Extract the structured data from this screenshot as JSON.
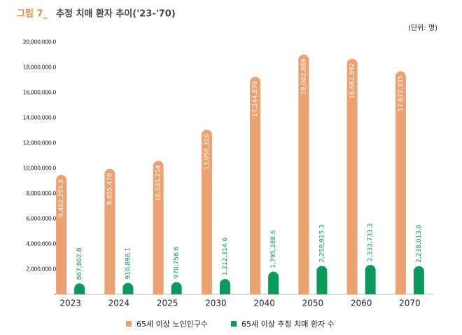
{
  "chart_data": {
    "type": "bar",
    "figure_label": "그림 7_",
    "title": "추정 치매 환자 추이('23-'70)",
    "unit_note": "(단위:  명)",
    "categories": [
      "2023",
      "2024",
      "2025",
      "2030",
      "2040",
      "2050",
      "2060",
      "2070"
    ],
    "series": [
      {
        "name": "65세 이상 노인인구수",
        "color": "#eba172",
        "values": [
          9462259.5,
          9955476,
          10585254,
          13056326,
          17244870,
          19003889,
          18681892,
          17677335
        ],
        "value_labels": [
          "9,462,259.5",
          "9,955,476",
          "10,585,254",
          "13,056,326",
          "17,244,870",
          "19,003,889",
          "18,681,892",
          "17,677,335"
        ]
      },
      {
        "name": "65세 이상 추정 치매 환자 수",
        "color": "#0b9a5c",
        "values": [
          867802.8,
          910898.1,
          970758.6,
          1212314.6,
          1795288.6,
          2258915.3,
          2333733.3,
          2238013.0
        ],
        "value_labels": [
          "867,802.8",
          "910,898.1",
          "970,758.6",
          "1,212,314.6",
          "1,795,288.6",
          "2,258,915.3",
          "2,333,733.3",
          "2,238,013.0"
        ]
      }
    ],
    "ylim": [
      0,
      20000000
    ],
    "yticks": [
      {
        "value": 0,
        "label": "-"
      },
      {
        "value": 2000000,
        "label": "2,000,000.0"
      },
      {
        "value": 4000000,
        "label": "4,000,000.0"
      },
      {
        "value": 6000000,
        "label": "6,000,000.0"
      },
      {
        "value": 8000000,
        "label": "8,000,000.0"
      },
      {
        "value": 10000000,
        "label": "10,000,000.0"
      },
      {
        "value": 12000000,
        "label": "12,000,000.0"
      },
      {
        "value": 14000000,
        "label": "14,000,000.0"
      },
      {
        "value": 16000000,
        "label": "16,000,000.0"
      },
      {
        "value": 18000000,
        "label": "18,000,000.0"
      },
      {
        "value": 20000000,
        "label": "20,000,000.0"
      }
    ],
    "grid": false,
    "legend": "bottom"
  }
}
